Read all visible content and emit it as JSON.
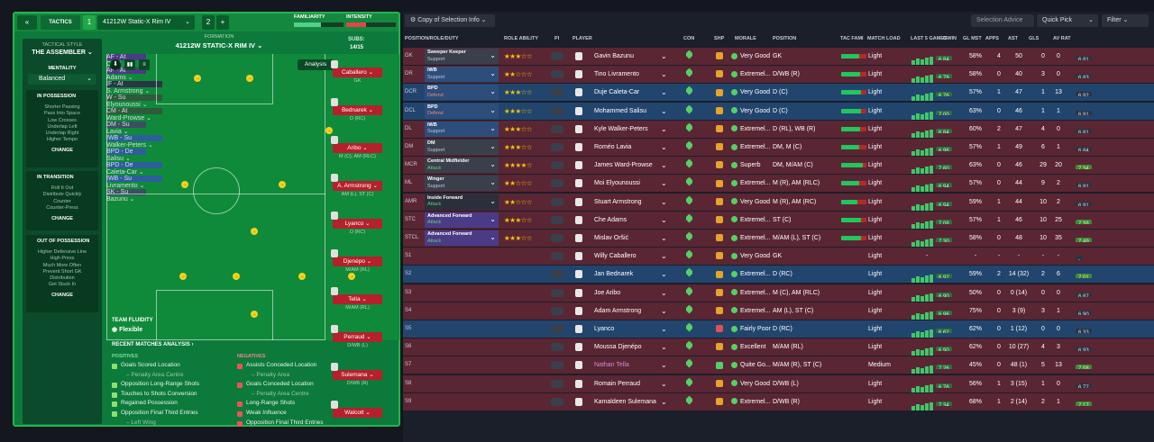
{
  "tactics": {
    "tab_label": "TACTICS",
    "slot1_number": "1",
    "formation_name": "41212W Static-X Rim  IV",
    "slot2_number": "2",
    "add_label": "+",
    "familiarity_label": "FAMILIARITY",
    "intensity_label": "INTENSITY",
    "familiarity_pct": 0.55,
    "intensity_pct": 0.4,
    "style_heading": "TACTICAL STYLE",
    "style_name": "THE ASSEMBLER",
    "mentality_heading": "MENTALITY",
    "mentality_value": "Balanced",
    "in_possession": {
      "heading": "IN POSSESSION",
      "items": [
        "Shorter Passing",
        "Pass Into Space",
        "Low Crosses",
        "Underlap Left",
        "Underlap Right",
        "Higher Tempo"
      ],
      "change": "CHANGE"
    },
    "in_transition": {
      "heading": "IN TRANSITION",
      "items": [
        "Roll It Out",
        "Distribute Quickly",
        "Counter",
        "Counter-Press"
      ],
      "change": "CHANGE"
    },
    "out_of_possession": {
      "heading": "OUT OF POSSESSION",
      "items": [
        "Higher Defensive Line",
        "High Press",
        "Much More Often",
        "Prevent Short GK",
        "Distribution",
        "Get Stuck In"
      ],
      "change": "CHANGE"
    },
    "formation_heading": "FORMATION",
    "formation_title": "41212W STATIC-X RIM  IV",
    "subs_label": "SUBS:",
    "subs_count": "14/15",
    "analysis_label": "Analysis",
    "team_fluidity_label": "TEAM FLUIDITY",
    "team_fluidity_value": "Flexible",
    "pitch": [
      {
        "role": "AF - At",
        "name": "Oršić",
        "color": "#4b3a86"
      },
      {
        "role": "AF - At",
        "name": "Adams",
        "color": "#4b3a86"
      },
      {
        "role": "IF - At",
        "name": "S. Armstrong",
        "color": "#2a3548"
      },
      {
        "role": "W - Su",
        "name": "Elyounoussi",
        "color": "#2f5a3b"
      },
      {
        "role": "CM - At",
        "name": "Ward-Prowse",
        "color": "#2f5a3b"
      },
      {
        "role": "DM - Su",
        "name": "Lavia",
        "color": "#3d4e63"
      },
      {
        "role": "IWB - Su",
        "name": "Walker-Peters",
        "color": "#2d5e9c"
      },
      {
        "role": "BPD - De",
        "name": "Salisu",
        "color": "#2d5e9c"
      },
      {
        "role": "BPD - De",
        "name": "Caleta-Car",
        "color": "#2d5e9c"
      },
      {
        "role": "IWB - Su",
        "name": "Livramento",
        "color": "#2d5e9c"
      },
      {
        "role": "SK - Su",
        "name": "Bazunu",
        "color": "#3d4e63"
      }
    ],
    "subs": [
      {
        "name": "Caballero",
        "pos": "GK"
      },
      {
        "name": "Bednarek",
        "pos": "D (RC)"
      },
      {
        "name": "Aribo",
        "pos": "M (C), AM (RLC)"
      },
      {
        "name": "A. Armstrong",
        "pos": "AM (L), ST (C)"
      },
      {
        "name": "Lyanco",
        "pos": "D (RC)"
      },
      {
        "name": "Djenépo",
        "pos": "M/AM (RL)"
      },
      {
        "name": "Tella",
        "pos": "M/AM (RL)"
      },
      {
        "name": "Perraud",
        "pos": "D/WB (L)"
      },
      {
        "name": "Sulemana",
        "pos": "D/WB (R)"
      },
      {
        "name": "Walcott",
        "pos": ""
      }
    ],
    "recent_heading": "RECENT MATCHES ANALYSIS",
    "positives_heading": "POSITIVES",
    "positives": [
      "Goals Scored Location",
      "– Penalty Area Centre",
      "Opposition Long-Range Shots",
      "Touches to Shots Conversion",
      "Regained Possession",
      "Opposition Final Third Entries",
      "– Left Wing"
    ],
    "negatives_heading": "NEGATIVES",
    "negatives": [
      "Assists Conceded Location",
      "– Penalty Area",
      "Goals Conceded Location",
      "– Penalty Area Centre",
      "Long-Range Shots",
      "Weak Influence",
      "Opposition Final Third Entries"
    ]
  },
  "toolbar": {
    "copy_label": "Copy of Selection Info",
    "selection_advice": "Selection Advice",
    "quick_pick": "Quick Pick",
    "filter": "Filter"
  },
  "columns": [
    "POSITION/ROLE/DUTY",
    "ROLE ABILITY",
    "PI",
    "PLAYER",
    "CON",
    "SHP",
    "MORALE",
    "POSITION",
    "TAC FAMI",
    "MATCH LOAD",
    "LAST 5 GAMES",
    "GWIN",
    "GL MST",
    "APPS",
    "AST",
    "GLS",
    "AV RAT"
  ],
  "rows": [
    {
      "slot": "GK",
      "role": "Sweeper Keeper",
      "duty": "Support",
      "dutyColor": "#bfc7d4",
      "bg": "#5a2633",
      "boxbg": "#3a3f4c",
      "stars": 3,
      "player": "Gavin Bazunu",
      "morale": "Very Good",
      "pos": "GK",
      "tac": 0.7,
      "load": "Light",
      "last5": "6.84",
      "gwin": "58%",
      "glmst": "4",
      "apps": "50",
      "ast": "0",
      "gls": "0",
      "avrat": "6.81",
      "ship": "#e7a32a"
    },
    {
      "slot": "DR",
      "role": "IWB",
      "duty": "Support",
      "dutyColor": "#bfc7d4",
      "bg": "#5a2633",
      "boxbg": "#2d4d7a",
      "stars": 2,
      "player": "Tino Livramento",
      "morale": "Extremel...",
      "pos": "D/WB (R)",
      "tac": 0.75,
      "load": "Light",
      "last5": "6.78",
      "gwin": "58%",
      "glmst": "0",
      "apps": "40",
      "ast": "3",
      "gls": "0",
      "avrat": "6.83",
      "ship": "#e7a32a"
    },
    {
      "slot": "DCR",
      "role": "BPD",
      "duty": "Defend",
      "dutyColor": "#e58a8a",
      "bg": "#22456e",
      "boxbg": "#2d4d7a",
      "stars": 3,
      "player": "Duje Caleta-Car",
      "morale": "Very Good",
      "pos": "D (C)",
      "tac": 0.8,
      "load": "Light",
      "last5": "6.76",
      "gwin": "57%",
      "glmst": "1",
      "apps": "47",
      "ast": "1",
      "gls": "13",
      "avrat": "6.92",
      "ship": "#e7a32a"
    },
    {
      "slot": "DCL",
      "role": "BPD",
      "duty": "Defend",
      "dutyColor": "#e58a8a",
      "bg": "#22456e",
      "boxbg": "#2d4d7a",
      "stars": 3,
      "player": "Mohammed Salisu",
      "morale": "Very Good",
      "pos": "D (C)",
      "tac": 0.8,
      "load": "Light",
      "last5": "7.00",
      "gwin": "63%",
      "glmst": "0",
      "apps": "46",
      "ast": "1",
      "gls": "1",
      "avrat": "6.91",
      "ship": "#e7a32a"
    },
    {
      "slot": "DL",
      "role": "IWB",
      "duty": "Support",
      "dutyColor": "#bfc7d4",
      "bg": "#5a2633",
      "boxbg": "#2d4d7a",
      "stars": 3,
      "player": "Kyle Walker-Peters",
      "morale": "Extremel...",
      "pos": "D (RL), WB (R)",
      "tac": 0.75,
      "load": "Light",
      "last5": "6.84",
      "gwin": "60%",
      "glmst": "2",
      "apps": "47",
      "ast": "4",
      "gls": "0",
      "avrat": "6.81",
      "ship": "#e7a32a"
    },
    {
      "slot": "DM",
      "role": "DM",
      "duty": "Support",
      "dutyColor": "#bfc7d4",
      "bg": "#5a2633",
      "boxbg": "#3a3f4c",
      "stars": 3,
      "player": "Roméo Lavia",
      "morale": "Extremel...",
      "pos": "DM, M (C)",
      "tac": 0.7,
      "load": "Light",
      "last5": "6.96",
      "gwin": "57%",
      "glmst": "1",
      "apps": "49",
      "ast": "6",
      "gls": "1",
      "avrat": "6.84",
      "ship": "#e7a32a"
    },
    {
      "slot": "MCR",
      "role": "Central Midfielder",
      "duty": "Attack",
      "dutyColor": "#5fd37a",
      "bg": "#5a2633",
      "boxbg": "#3a3f4c",
      "stars": 4,
      "player": "James Ward-Prowse",
      "morale": "Superb",
      "pos": "DM, M/AM (C)",
      "tac": 0.85,
      "load": "Light",
      "last5": "7.60",
      "gwin": "63%",
      "glmst": "0",
      "apps": "46",
      "ast": "29",
      "gls": "20",
      "avrat": "7.34",
      "ship": "#e7a32a"
    },
    {
      "slot": "ML",
      "role": "Winger",
      "duty": "Support",
      "dutyColor": "#bfc7d4",
      "bg": "#5a2633",
      "boxbg": "#3a3f4c",
      "stars": 2,
      "player": "Moi Elyounoussi",
      "morale": "Extremel...",
      "pos": "M (R), AM (RLC)",
      "tac": 0.7,
      "load": "Light",
      "last5": "6.94",
      "gwin": "57%",
      "glmst": "0",
      "apps": "44",
      "ast": "9",
      "gls": "2",
      "avrat": "6.81",
      "ship": "#e7a32a"
    },
    {
      "slot": "AMR",
      "role": "Inside Forward",
      "duty": "Attack",
      "dutyColor": "#5fd37a",
      "bg": "#5a2633",
      "boxbg": "#2a2f3b",
      "stars": 2,
      "player": "Stuart Armstrong",
      "morale": "Very Good",
      "pos": "M (R), AM (RC)",
      "tac": 0.65,
      "load": "Light",
      "last5": "6.94",
      "gwin": "59%",
      "glmst": "1",
      "apps": "44",
      "ast": "10",
      "gls": "2",
      "avrat": "6.91",
      "ship": "#e7a32a"
    },
    {
      "slot": "STC",
      "role": "Advanced Forward",
      "duty": "Attack",
      "dutyColor": "#5fd37a",
      "bg": "#5a2633",
      "boxbg": "#4b3a86",
      "stars": 3,
      "player": "Che Adams",
      "morale": "Extremel...",
      "pos": "ST (C)",
      "tac": 0.8,
      "load": "Light",
      "last5": "7.08",
      "gwin": "57%",
      "glmst": "1",
      "apps": "46",
      "ast": "10",
      "gls": "25",
      "avrat": "7.38",
      "ship": "#e7a32a"
    },
    {
      "slot": "STCL",
      "role": "Advanced Forward",
      "duty": "Attack",
      "dutyColor": "#5fd37a",
      "bg": "#5a2633",
      "boxbg": "#4b3a86",
      "stars": 3,
      "player": "Mislav Oršić",
      "morale": "Extremel...",
      "pos": "M/AM (L), ST (C)",
      "tac": 0.8,
      "load": "Light",
      "last5": "7.30",
      "gwin": "58%",
      "glmst": "0",
      "apps": "48",
      "ast": "10",
      "gls": "35",
      "avrat": "7.49",
      "ship": "#e7a32a"
    },
    {
      "slot": "S1",
      "role": "",
      "duty": "",
      "dutyColor": "#bfc7d4",
      "bg": "#5a2633",
      "boxbg": "",
      "stars": 0,
      "player": "Willy Caballero",
      "morale": "Very Good",
      "pos": "GK",
      "tac": 0,
      "load": "Light",
      "last5": "-",
      "gwin": "-",
      "glmst": "-",
      "apps": "-",
      "ast": "-",
      "gls": "-",
      "avrat": "-",
      "ship": "#e7a32a"
    },
    {
      "slot": "S2",
      "role": "",
      "duty": "",
      "dutyColor": "#bfc7d4",
      "bg": "#22456e",
      "boxbg": "",
      "stars": 0,
      "player": "Jan Bednarek",
      "morale": "Extremel...",
      "pos": "D (RC)",
      "tac": 0,
      "load": "Light",
      "last5": "6.92",
      "gwin": "59%",
      "glmst": "2",
      "apps": "14 (32)",
      "ast": "2",
      "gls": "6",
      "avrat": "7.01",
      "ship": "#e7a32a"
    },
    {
      "slot": "S3",
      "role": "",
      "duty": "",
      "dutyColor": "#bfc7d4",
      "bg": "#5a2633",
      "boxbg": "",
      "stars": 0,
      "player": "Joe Aribo",
      "morale": "Extremel...",
      "pos": "M (C), AM (RLC)",
      "tac": 0,
      "load": "Light",
      "last5": "6.90",
      "gwin": "50%",
      "glmst": "0",
      "apps": "0 (14)",
      "ast": "0",
      "gls": "0",
      "avrat": "6.87",
      "ship": "#e7a32a"
    },
    {
      "slot": "S4",
      "role": "",
      "duty": "",
      "dutyColor": "#bfc7d4",
      "bg": "#5a2633",
      "boxbg": "",
      "stars": 0,
      "player": "Adam Armstrong",
      "morale": "Extremel...",
      "pos": "AM (L), ST (C)",
      "tac": 0,
      "load": "Light",
      "last5": "6.96",
      "gwin": "75%",
      "glmst": "0",
      "apps": "3 (9)",
      "ast": "3",
      "gls": "1",
      "avrat": "6.90",
      "ship": "#e7a32a"
    },
    {
      "slot": "S5",
      "role": "",
      "duty": "",
      "dutyColor": "#bfc7d4",
      "bg": "#22456e",
      "boxbg": "",
      "stars": 0,
      "player": "Lyanco",
      "morale": "Fairly Poor",
      "pos": "D (RC)",
      "tac": 0,
      "load": "Light",
      "last5": "6.62",
      "gwin": "62%",
      "glmst": "0",
      "apps": "1 (12)",
      "ast": "0",
      "gls": "0",
      "avrat": "6.33",
      "ship": "#e05050"
    },
    {
      "slot": "S6",
      "role": "",
      "duty": "",
      "dutyColor": "#bfc7d4",
      "bg": "#5a2633",
      "boxbg": "",
      "stars": 0,
      "player": "Moussa Djenépo",
      "morale": "Excellent",
      "pos": "M/AM (RL)",
      "tac": 0,
      "load": "Light",
      "last5": "6.90",
      "gwin": "62%",
      "glmst": "0",
      "apps": "10 (27)",
      "ast": "4",
      "gls": "3",
      "avrat": "6.93",
      "ship": "#e7a32a"
    },
    {
      "slot": "S7",
      "role": "",
      "duty": "",
      "dutyColor": "#bfc7d4",
      "bg": "#5a2633",
      "boxbg": "",
      "stars": 0,
      "player": "Nathan Tella",
      "morale": "Quite Go...",
      "pos": "M/AM (R), ST (C)",
      "tac": 0,
      "load": "Medium",
      "last5": "7.26",
      "gwin": "45%",
      "glmst": "0",
      "apps": "48 (1)",
      "ast": "5",
      "gls": "13",
      "avrat": "7.08",
      "ship": "#4fd06a"
    },
    {
      "slot": "S8",
      "role": "",
      "duty": "",
      "dutyColor": "#bfc7d4",
      "bg": "#5a2633",
      "boxbg": "",
      "stars": 0,
      "player": "Romain Perraud",
      "morale": "Very Good",
      "pos": "D/WB (L)",
      "tac": 0,
      "load": "Light",
      "last5": "6.76",
      "gwin": "56%",
      "glmst": "1",
      "apps": "3 (15)",
      "ast": "1",
      "gls": "0",
      "avrat": "6.77",
      "ship": "#e7a32a"
    },
    {
      "slot": "S9",
      "role": "",
      "duty": "",
      "dutyColor": "#bfc7d4",
      "bg": "#5a2633",
      "boxbg": "",
      "stars": 0,
      "player": "Kamaldeen Sulemana",
      "morale": "Extremel...",
      "pos": "D/WB (R)",
      "tac": 0,
      "load": "Light",
      "last5": "7.34",
      "gwin": "68%",
      "glmst": "1",
      "apps": "2 (14)",
      "ast": "2",
      "gls": "1",
      "avrat": "7.17",
      "ship": "#e7a32a"
    }
  ]
}
